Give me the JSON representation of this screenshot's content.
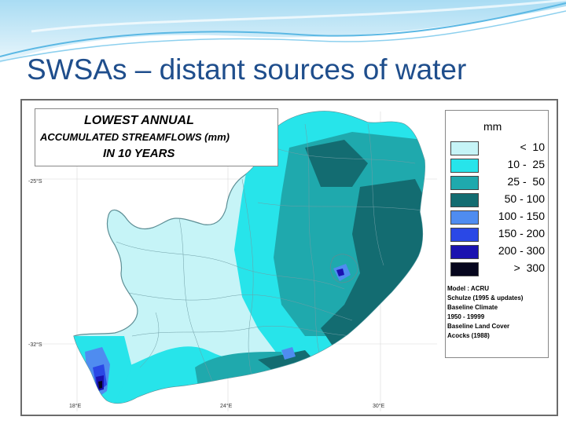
{
  "slide": {
    "title": "SWSAs – distant sources of water"
  },
  "map": {
    "title_lines": [
      "LOWEST ANNUAL",
      "ACCUMULATED STREAMFLOWS (mm)",
      "IN 10 YEARS"
    ],
    "legend": {
      "unit": "mm",
      "classes": [
        {
          "label": "<  10",
          "color": "#c6f4f7"
        },
        {
          "label": "10 -  25",
          "color": "#27e4ea"
        },
        {
          "label": "25 -  50",
          "color": "#1fa9ad"
        },
        {
          "label": "50 - 100",
          "color": "#136c71"
        },
        {
          "label": "100 - 150",
          "color": "#4f8cf0"
        },
        {
          "label": "150 - 200",
          "color": "#2a48e6"
        },
        {
          "label": "200 - 300",
          "color": "#1a12b0"
        },
        {
          "label": ">  300",
          "color": "#06061e"
        }
      ]
    },
    "credits": [
      "Model  :  ACRU",
      "Schulze (1995 & updates)",
      "Baseline Climate",
      "  1950 - 19999",
      "Baseline Land Cover",
      "  Acocks (1988)"
    ],
    "lat_labels": [
      "-25°S",
      "-32°S"
    ],
    "lon_labels": [
      "18°E",
      "24°E",
      "30°E"
    ],
    "colors": {
      "boundary": "#6f9ea6",
      "map_bg": "#ffffff",
      "banner_light": "#d7eef9",
      "banner_mid": "#6cc6ea"
    }
  }
}
